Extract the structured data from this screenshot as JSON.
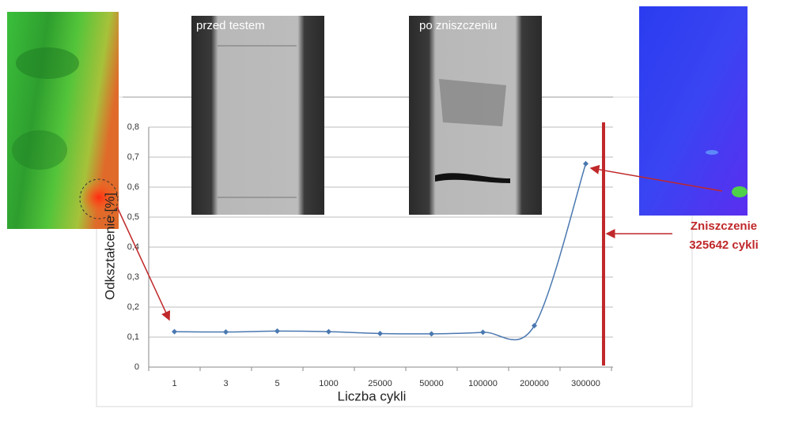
{
  "chart_data": {
    "type": "line",
    "categories": [
      "1",
      "3",
      "5",
      "1000",
      "25000",
      "50000",
      "100000",
      "200000",
      "300000"
    ],
    "series": [
      {
        "name": null,
        "color": "#4a78b0",
        "values": [
          0.118,
          0.117,
          0.12,
          0.118,
          0.112,
          0.111,
          0.116,
          0.138,
          0.678
        ]
      }
    ],
    "ylim": [
      0,
      0.8
    ],
    "yticks": [
      0,
      {
        "value": 0.1,
        "label": "0,1"
      },
      {
        "value": 0.2,
        "label": "0,2"
      },
      {
        "value": 0.3,
        "label": "0,3"
      },
      {
        "value": 0.4,
        "label": "0,4"
      },
      {
        "value": 0.5,
        "label": "0,5"
      },
      {
        "value": 0.6,
        "label": "0,6"
      },
      {
        "value": 0.7,
        "label": "0,7"
      },
      {
        "value": 0.8,
        "label": "0,8"
      }
    ],
    "grid": true,
    "y_label": "Odkształcenie [%]",
    "x_label": "Liczba cykli",
    "annotations": {
      "before": "przed testem",
      "after": "po zniszczeniu",
      "failure": "Zniszczenie",
      "failure_cycles": "325642 cykli"
    }
  }
}
